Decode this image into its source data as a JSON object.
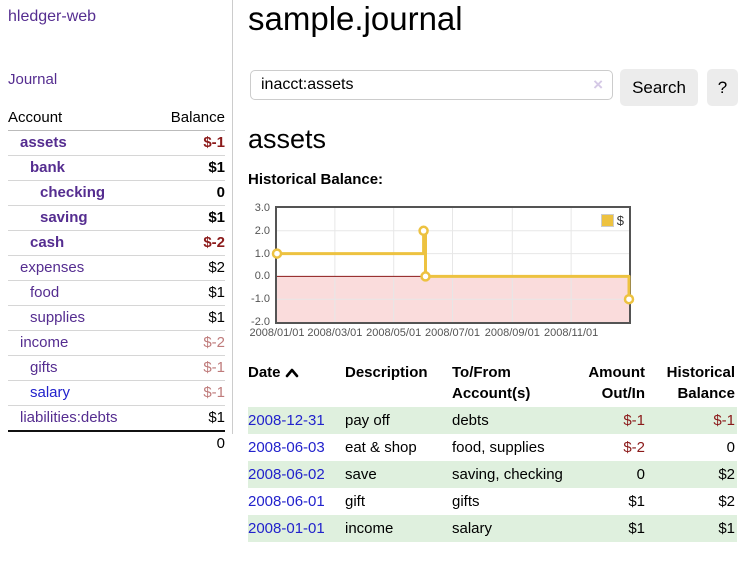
{
  "app": {
    "brand": "hledger-web",
    "journal_nav": "Journal"
  },
  "sidebar": {
    "account_header": "Account",
    "balance_header": "Balance",
    "accounts": [
      {
        "name": "assets",
        "indent": 1,
        "bold": true,
        "name_color": "purple",
        "balance": "$-1",
        "balance_color": "negative"
      },
      {
        "name": "bank",
        "indent": 2,
        "bold": true,
        "name_color": "purple",
        "balance": "$1",
        "balance_color": "normal"
      },
      {
        "name": "checking",
        "indent": 3,
        "bold": true,
        "name_color": "purple",
        "balance": "0",
        "balance_color": "normal"
      },
      {
        "name": "saving",
        "indent": 3,
        "bold": true,
        "name_color": "purple",
        "balance": "$1",
        "balance_color": "normal"
      },
      {
        "name": "cash",
        "indent": 2,
        "bold": true,
        "name_color": "purple",
        "balance": "$-2",
        "balance_color": "negative"
      },
      {
        "name": "expenses",
        "indent": 1,
        "bold": false,
        "name_color": "purple",
        "balance": "$2",
        "balance_color": "normal"
      },
      {
        "name": "food",
        "indent": 2,
        "bold": false,
        "name_color": "purple",
        "balance": "$1",
        "balance_color": "normal"
      },
      {
        "name": "supplies",
        "indent": 2,
        "bold": false,
        "name_color": "purple",
        "balance": "$1",
        "balance_color": "normal"
      },
      {
        "name": "income",
        "indent": 1,
        "bold": false,
        "name_color": "purple",
        "balance": "$-2",
        "balance_color": "muted-negative"
      },
      {
        "name": "gifts",
        "indent": 2,
        "bold": false,
        "name_color": "purple",
        "balance": "$-1",
        "balance_color": "muted-negative"
      },
      {
        "name": "salary",
        "indent": 2,
        "bold": false,
        "name_color": "blue",
        "balance": "$-1",
        "balance_color": "muted-negative"
      },
      {
        "name": "liabilities:debts",
        "indent": 1,
        "bold": false,
        "name_color": "purple",
        "balance": "$1",
        "balance_color": "normal"
      }
    ],
    "total": "0"
  },
  "main": {
    "title": "sample.journal",
    "search": {
      "value": "inacct:assets",
      "clear_icon": "×",
      "search_button": "Search",
      "help_button": "?"
    },
    "account_heading": "assets",
    "chart_title": "Historical Balance:"
  },
  "chart_data": {
    "type": "line",
    "step": true,
    "title": "Historical Balance:",
    "series": [
      {
        "name": "$",
        "color": "#edc240",
        "points": [
          [
            "2008-01-01",
            1.0
          ],
          [
            "2008-06-01",
            2.0
          ],
          [
            "2008-06-03",
            0.0
          ],
          [
            "2008-12-31",
            -1.0
          ]
        ]
      }
    ],
    "x_range": [
      "2008-01-01",
      "2008-12-31"
    ],
    "ylim": [
      -2.0,
      3.0
    ],
    "yticks": [
      "3.0",
      "2.0",
      "1.0",
      "0.0",
      "-1.0",
      "-2.0"
    ],
    "xticks": [
      "2008/01/01",
      "2008/03/01",
      "2008/05/01",
      "2008/07/01",
      "2008/09/01",
      "2008/11/01"
    ],
    "grid": true,
    "legend": [
      "$"
    ],
    "legend_position": "top-right",
    "negative_region_color": "#fadcdc",
    "zero_line_color": "#8b1a1a"
  },
  "transactions": {
    "headers": {
      "date": "Date",
      "description": "Description",
      "tofrom_line1": "To/From",
      "tofrom_line2": "Account(s)",
      "amount_line1": "Amount",
      "amount_line2": "Out/In",
      "balance_line1": "Historical",
      "balance_line2": "Balance"
    },
    "sort_icon": "chevron-up",
    "rows": [
      {
        "date": "2008-12-31",
        "description": "pay off",
        "accounts": "debts",
        "amount": "$-1",
        "balance": "$-1"
      },
      {
        "date": "2008-06-03",
        "description": "eat & shop",
        "accounts": "food, supplies",
        "amount": "$-2",
        "balance": "0"
      },
      {
        "date": "2008-06-02",
        "description": "save",
        "accounts": "saving, checking",
        "amount": "0",
        "balance": "$2"
      },
      {
        "date": "2008-06-01",
        "description": "gift",
        "accounts": "gifts",
        "amount": "$1",
        "balance": "$2"
      },
      {
        "date": "2008-01-01",
        "description": "income",
        "accounts": "salary",
        "amount": "$1",
        "balance": "$1"
      }
    ]
  },
  "colors": {
    "link_purple": "#552d90",
    "link_blue": "#2222cc",
    "negative_red": "#8b1a1a",
    "muted_negative_red": "#bf7b7b",
    "row_stripe_green": "#dff0de",
    "series_gold": "#edc240",
    "chart_negative_bg": "#fadcdc",
    "button_bg": "#ececec"
  }
}
